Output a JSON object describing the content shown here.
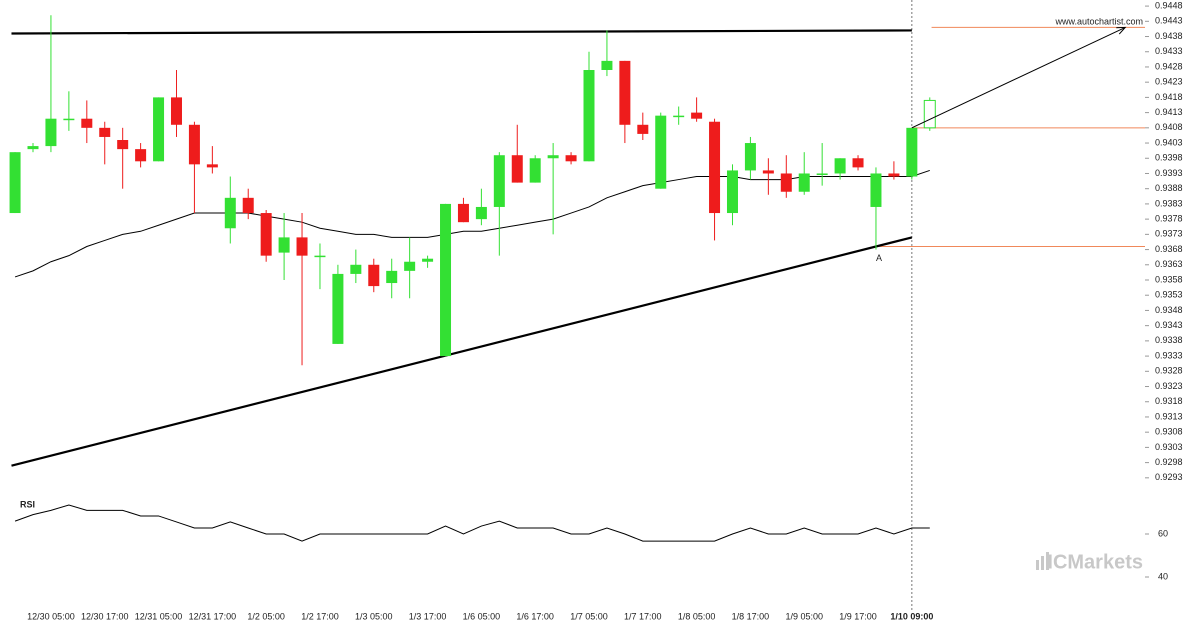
{
  "chart_data": {
    "type": "candlestick",
    "categories": [
      null,
      null,
      "12/30 05:00",
      null,
      null,
      "12/30 17:00",
      null,
      null,
      "12/31 05:00",
      null,
      null,
      "12/31 17:00",
      null,
      null,
      "1/2 05:00",
      null,
      null,
      "1/2 17:00",
      null,
      null,
      "1/3 05:00",
      null,
      null,
      "1/3 17:00",
      null,
      null,
      "1/6 05:00",
      null,
      null,
      "1/6 17:00",
      null,
      null,
      "1/7 05:00",
      null,
      null,
      "1/7 17:00",
      null,
      null,
      "1/8 05:00",
      null,
      null,
      "1/8 17:00",
      null,
      null,
      "1/9 05:00",
      null,
      null,
      "1/9 17:00",
      null,
      null,
      "1/10 09:00",
      null
    ],
    "open": [
      0.938,
      0.9401,
      0.9402,
      0.9411,
      0.9411,
      0.9408,
      0.9404,
      0.9401,
      0.9397,
      0.9418,
      0.9409,
      0.9396,
      0.9375,
      0.9385,
      0.938,
      0.9367,
      0.9372,
      0.9366,
      0.9337,
      0.936,
      0.9363,
      0.9357,
      0.9361,
      0.9364,
      0.9333,
      0.9383,
      0.9378,
      0.9382,
      0.9399,
      0.939,
      0.9398,
      0.9399,
      0.9397,
      0.9427,
      0.943,
      0.9409,
      0.9388,
      0.9412,
      0.9413,
      0.941,
      0.938,
      0.9394,
      0.9394,
      0.9393,
      0.9387,
      0.9393,
      0.9393,
      0.9398,
      0.9382,
      0.9393,
      0.9392,
      0.9408
    ],
    "high": [
      0.94,
      0.9403,
      0.9445,
      0.942,
      0.9417,
      0.941,
      0.9408,
      0.9403,
      0.9418,
      0.9427,
      0.941,
      0.9402,
      0.9392,
      0.9388,
      0.9381,
      0.938,
      0.938,
      0.937,
      0.9363,
      0.9368,
      0.9365,
      0.9365,
      0.9372,
      0.9366,
      0.9383,
      0.9385,
      0.9388,
      0.94,
      0.9409,
      0.9399,
      0.9403,
      0.94,
      0.9433,
      0.944,
      0.943,
      0.9413,
      0.9413,
      0.9415,
      0.9418,
      0.9411,
      0.9396,
      0.9405,
      0.9398,
      0.9399,
      0.94,
      0.9403,
      0.9398,
      0.9399,
      0.9395,
      0.9397,
      0.9408,
      0.9418
    ],
    "low": [
      0.938,
      0.94,
      0.94,
      0.9407,
      0.9403,
      0.9396,
      0.9388,
      0.9395,
      0.9397,
      0.9405,
      0.938,
      0.9393,
      0.937,
      0.9378,
      0.9364,
      0.9358,
      0.933,
      0.9355,
      0.9337,
      0.9357,
      0.9354,
      0.9352,
      0.9352,
      0.9362,
      0.9333,
      0.9377,
      0.9376,
      0.9366,
      0.939,
      0.939,
      0.9373,
      0.9396,
      0.9397,
      0.9425,
      0.9403,
      0.9404,
      0.9388,
      0.9409,
      0.941,
      0.9371,
      0.9376,
      0.9391,
      0.9386,
      0.9385,
      0.9386,
      0.9389,
      0.9391,
      0.9394,
      0.9368,
      0.9391,
      0.9391,
      0.9407
    ],
    "close": [
      0.94,
      0.9402,
      0.9411,
      0.9411,
      0.9408,
      0.9405,
      0.9401,
      0.9397,
      0.9418,
      0.9409,
      0.9396,
      0.9395,
      0.9385,
      0.938,
      0.9366,
      0.9372,
      0.9366,
      0.9366,
      0.936,
      0.9363,
      0.9356,
      0.9361,
      0.9364,
      0.9365,
      0.9383,
      0.9377,
      0.9382,
      0.9399,
      0.939,
      0.9398,
      0.9399,
      0.9397,
      0.9427,
      0.943,
      0.9409,
      0.9406,
      0.9412,
      0.9412,
      0.9411,
      0.938,
      0.9394,
      0.9403,
      0.9393,
      0.9387,
      0.9393,
      0.9393,
      0.9398,
      0.9395,
      0.9393,
      0.9392,
      0.9408,
      0.9417
    ],
    "up_color": "#33e033",
    "down_color": "#ee1c1c",
    "last_candle_hollow": true,
    "moving_average": [
      0.9359,
      0.9361,
      0.9364,
      0.9366,
      0.9369,
      0.9371,
      0.9373,
      0.9374,
      0.9376,
      0.9378,
      0.938,
      0.938,
      0.938,
      0.938,
      0.9379,
      0.9378,
      0.9377,
      0.9375,
      0.9374,
      0.9373,
      0.9373,
      0.9372,
      0.9372,
      0.9372,
      0.9373,
      0.9374,
      0.9374,
      0.9375,
      0.9376,
      0.9377,
      0.9378,
      0.938,
      0.9382,
      0.9385,
      0.9387,
      0.9389,
      0.939,
      0.9391,
      0.9392,
      0.9392,
      0.9392,
      0.9391,
      0.9391,
      0.9391,
      0.9392,
      0.9392,
      0.9392,
      0.9392,
      0.9392,
      0.9392,
      0.9392,
      0.9394
    ],
    "xlim": [
      -0.84,
      63.0
    ],
    "ylim": [
      0.9289,
      0.945
    ],
    "yticks": [
      0.9448,
      0.9443,
      0.9438,
      0.9433,
      0.9428,
      0.9423,
      0.9418,
      0.9413,
      0.9408,
      0.9403,
      0.9398,
      0.9393,
      0.9388,
      0.9383,
      0.9378,
      0.9373,
      0.9368,
      0.9363,
      0.9358,
      0.9353,
      0.9348,
      0.9343,
      0.9338,
      0.9333,
      0.9328,
      0.9323,
      0.9318,
      0.9313,
      0.9308,
      0.9303,
      0.9298,
      0.9293
    ],
    "current_index": 50,
    "trend_lines": [
      {
        "x": [
          -0.2,
          50
        ],
        "values": [
          0.9439,
          0.944
        ]
      },
      {
        "x": [
          -0.2,
          50
        ],
        "values": [
          0.9297,
          0.9372
        ]
      }
    ],
    "projection_arrow": {
      "x": [
        50,
        61.9
      ],
      "values": [
        0.9408,
        0.9441
      ]
    },
    "levels": [
      {
        "from": 51.1,
        "value": 0.9441
      },
      {
        "from": 50,
        "value": 0.9408
      },
      {
        "from": 48,
        "value": 0.9369
      }
    ],
    "annotation": {
      "text": "A",
      "x": 48,
      "value": 0.9366
    },
    "source": "www.autochartist.com",
    "watermark": "ICMarkets",
    "rsi": {
      "label": "RSI",
      "values": [
        66,
        69,
        71,
        73.5,
        71,
        71,
        71,
        68.4,
        68.4,
        65.6,
        62.8,
        62.8,
        65.6,
        62.8,
        60,
        60,
        56.7,
        60,
        60,
        60,
        60,
        60,
        60,
        60,
        63.7,
        60,
        63.7,
        66,
        62.8,
        62.8,
        62.8,
        60,
        60,
        62.8,
        60,
        56.7,
        56.7,
        56.7,
        56.7,
        56.7,
        60,
        62.8,
        60,
        60,
        62.8,
        60,
        60,
        60,
        62.8,
        60,
        62.8,
        62.8
      ],
      "ylim": [
        30,
        80
      ],
      "yticks": [
        60,
        40
      ]
    }
  }
}
